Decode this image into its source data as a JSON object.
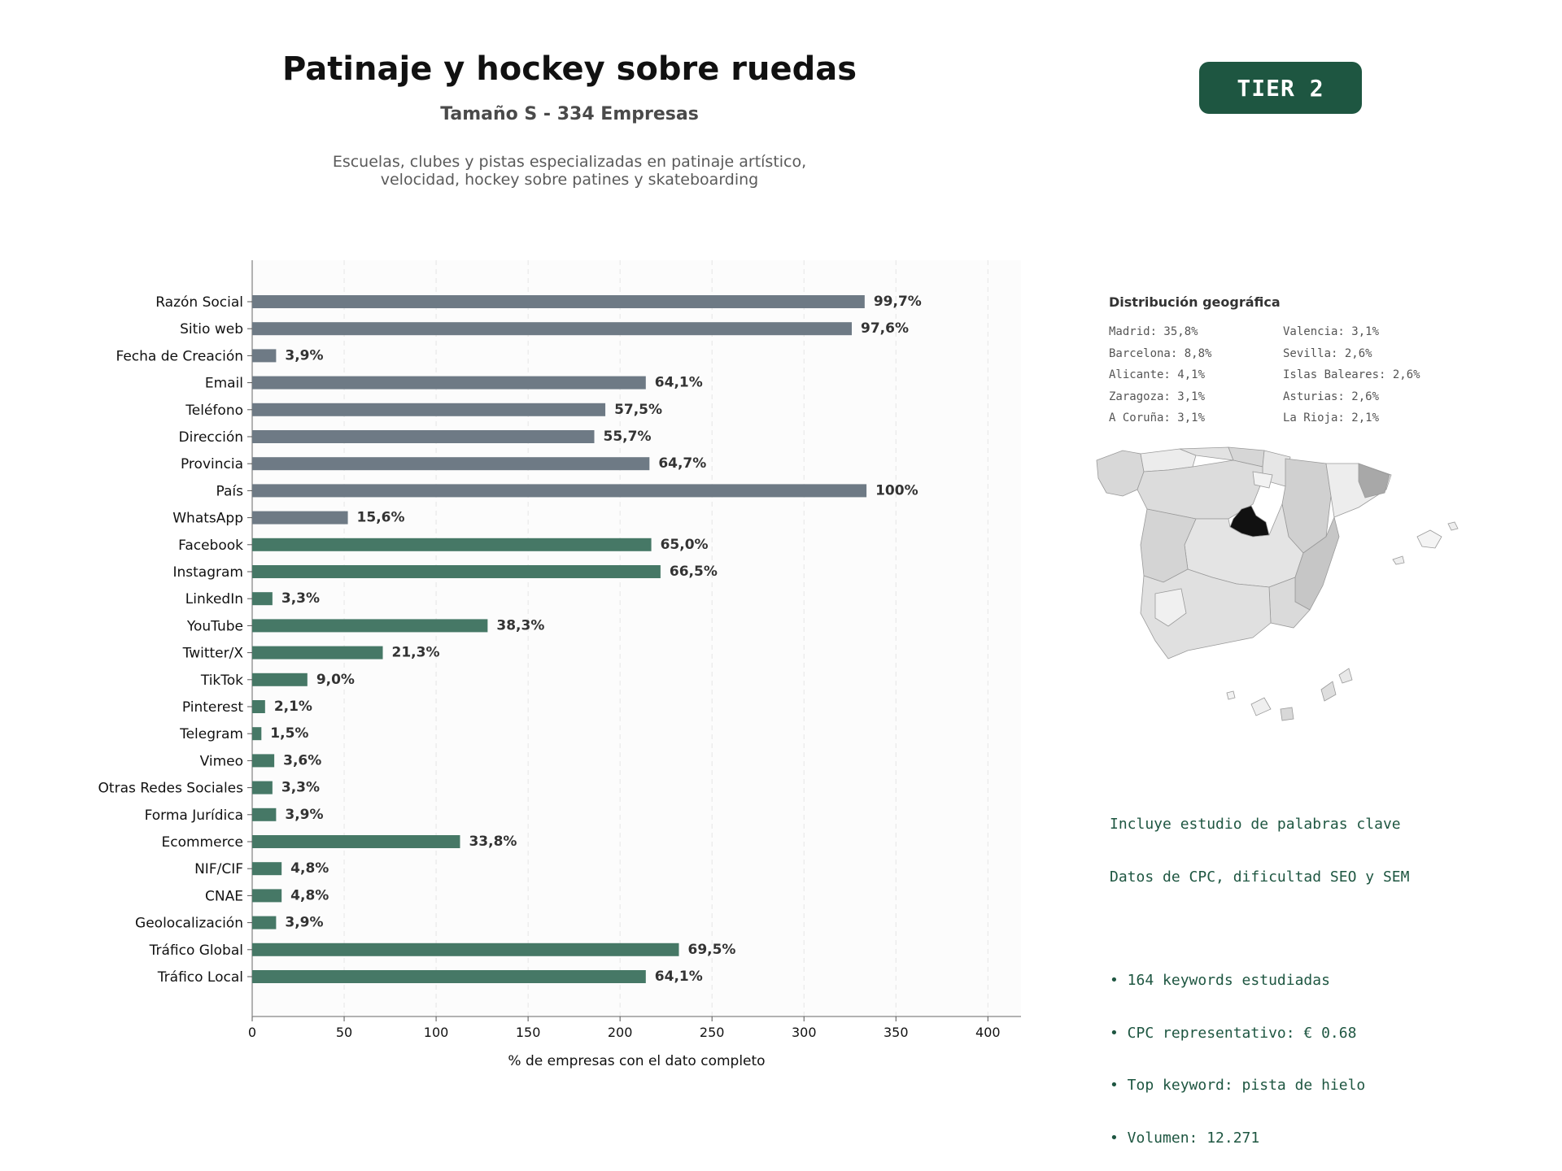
{
  "header": {
    "title": "Patinaje y hockey sobre ruedas",
    "subtitle": "Tamaño S - 334 Empresas",
    "description_line1": "Escuelas, clubes y pistas especializadas en patinaje artístico,",
    "description_line2": "velocidad, hockey sobre patines y skateboarding",
    "tier_badge": "TIER 2"
  },
  "colors": {
    "gray_bar": "#6e7a85",
    "green_bar": "#467866",
    "tier_bg": "#1e5641",
    "keyword_text": "#1e5641",
    "madrid": "#111111"
  },
  "chart_data": {
    "type": "bar",
    "orientation": "horizontal",
    "categories": [
      "Razón Social",
      "Sitio web",
      "Fecha de Creación",
      "Email",
      "Teléfono",
      "Dirección",
      "Provincia",
      "País",
      "WhatsApp",
      "Facebook",
      "Instagram",
      "LinkedIn",
      "YouTube",
      "Twitter/X",
      "TikTok",
      "Pinterest",
      "Telegram",
      "Vimeo",
      "Otras Redes Sociales",
      "Forma Jurídica",
      "Ecommerce",
      "NIF/CIF",
      "CNAE",
      "Geolocalización",
      "Tráfico Global",
      "Tráfico Local"
    ],
    "values": [
      333,
      326,
      13,
      214,
      192,
      186,
      216,
      334,
      52,
      217,
      222,
      11,
      128,
      71,
      30,
      7,
      5,
      12,
      11,
      13,
      113,
      16,
      16,
      13,
      232,
      214
    ],
    "data_labels": [
      "99,7%",
      "97,6%",
      "3,9%",
      "64,1%",
      "57,5%",
      "55,7%",
      "64,7%",
      "100%",
      "15,6%",
      "65,0%",
      "66,5%",
      "3,3%",
      "38,3%",
      "21,3%",
      "9,0%",
      "2,1%",
      "1,5%",
      "3,6%",
      "3,3%",
      "3,9%",
      "33,8%",
      "4,8%",
      "4,8%",
      "3,9%",
      "69,5%",
      "64,1%"
    ],
    "bar_color_group": [
      "gray",
      "gray",
      "gray",
      "gray",
      "gray",
      "gray",
      "gray",
      "gray",
      "gray",
      "green",
      "green",
      "green",
      "green",
      "green",
      "green",
      "green",
      "green",
      "green",
      "green",
      "green",
      "green",
      "green",
      "green",
      "green",
      "green",
      "green"
    ],
    "xlabel": "% de empresas con el dato completo",
    "ylabel": "",
    "xlim": [
      0,
      418
    ],
    "xticks": [
      0,
      50,
      100,
      150,
      200,
      250,
      300,
      350,
      400
    ],
    "grid": "vertical dashed"
  },
  "geo": {
    "title": "Distribución geográfica",
    "col1": [
      "Madrid: 35,8%",
      "Barcelona: 8,8%",
      "Alicante: 4,1%",
      "Zaragoza: 3,1%",
      "A Coruña: 3,1%"
    ],
    "col2": [
      "Valencia: 3,1%",
      "Sevilla: 2,6%",
      "Islas Baleares: 2,6%",
      "Asturias: 2,6%",
      "La Rioja: 2,1%"
    ]
  },
  "keywords": {
    "line1": "Incluye estudio de palabras clave",
    "line2": "Datos de CPC, dificultad SEO y SEM",
    "bullet1": "• 164 keywords estudiadas",
    "bullet2": "• CPC representativo: € 0.68",
    "bullet3": "• Top keyword: pista de hielo",
    "bullet4": "• Volumen: 12.271"
  }
}
